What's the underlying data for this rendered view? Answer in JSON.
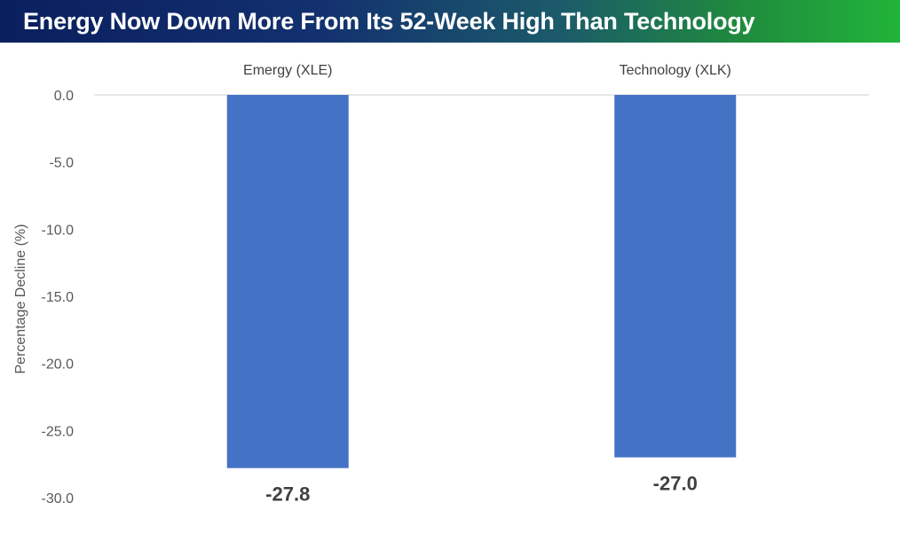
{
  "chart_data": {
    "type": "bar",
    "title": "Energy Now Down More From Its 52-Week High Than Technology",
    "ylabel": "Percentage Decline (%)",
    "categories": [
      "Emergy (XLE)",
      "Technology (XLK)"
    ],
    "values": [
      -27.8,
      -27.0
    ],
    "data_labels": [
      "-27.8",
      "-27.0"
    ],
    "ylim": [
      -30,
      0
    ],
    "yticks": [
      "0.0",
      "-5.0",
      "-10.0",
      "-15.0",
      "-20.0",
      "-25.0",
      "-30.0"
    ],
    "ytick_values": [
      0,
      -5,
      -10,
      -15,
      -20,
      -25,
      -30
    ],
    "category_axis_position": "top",
    "grid": false,
    "legend": "none",
    "bar_color": "#4472c4"
  }
}
